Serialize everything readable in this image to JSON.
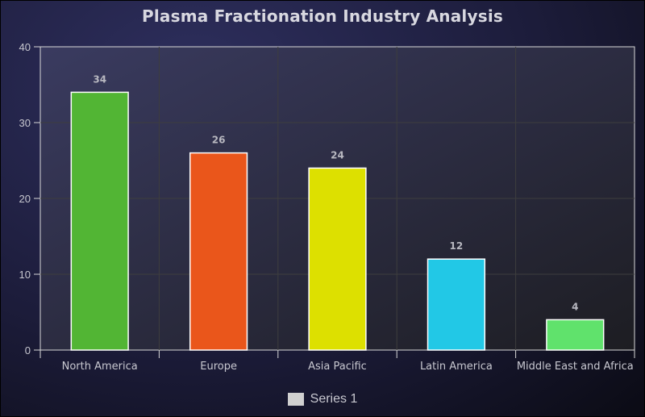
{
  "chart_data": {
    "type": "bar",
    "title": "Plasma Fractionation Industry Analysis",
    "categories": [
      "North America",
      "Europe",
      "Asia Pacific",
      "Latin America",
      "Middle East and Africa"
    ],
    "series": [
      {
        "name": "Series 1",
        "values": [
          34,
          26,
          24,
          12,
          4
        ]
      }
    ],
    "bar_colors": [
      "#52b534",
      "#ea561b",
      "#dde000",
      "#22c8e6",
      "#60e26c"
    ],
    "ylim": [
      0,
      40
    ],
    "yticks": [
      0,
      10,
      20,
      30,
      40
    ],
    "grid": true,
    "legend_position": "bottom",
    "xlabel": "",
    "ylabel": ""
  }
}
